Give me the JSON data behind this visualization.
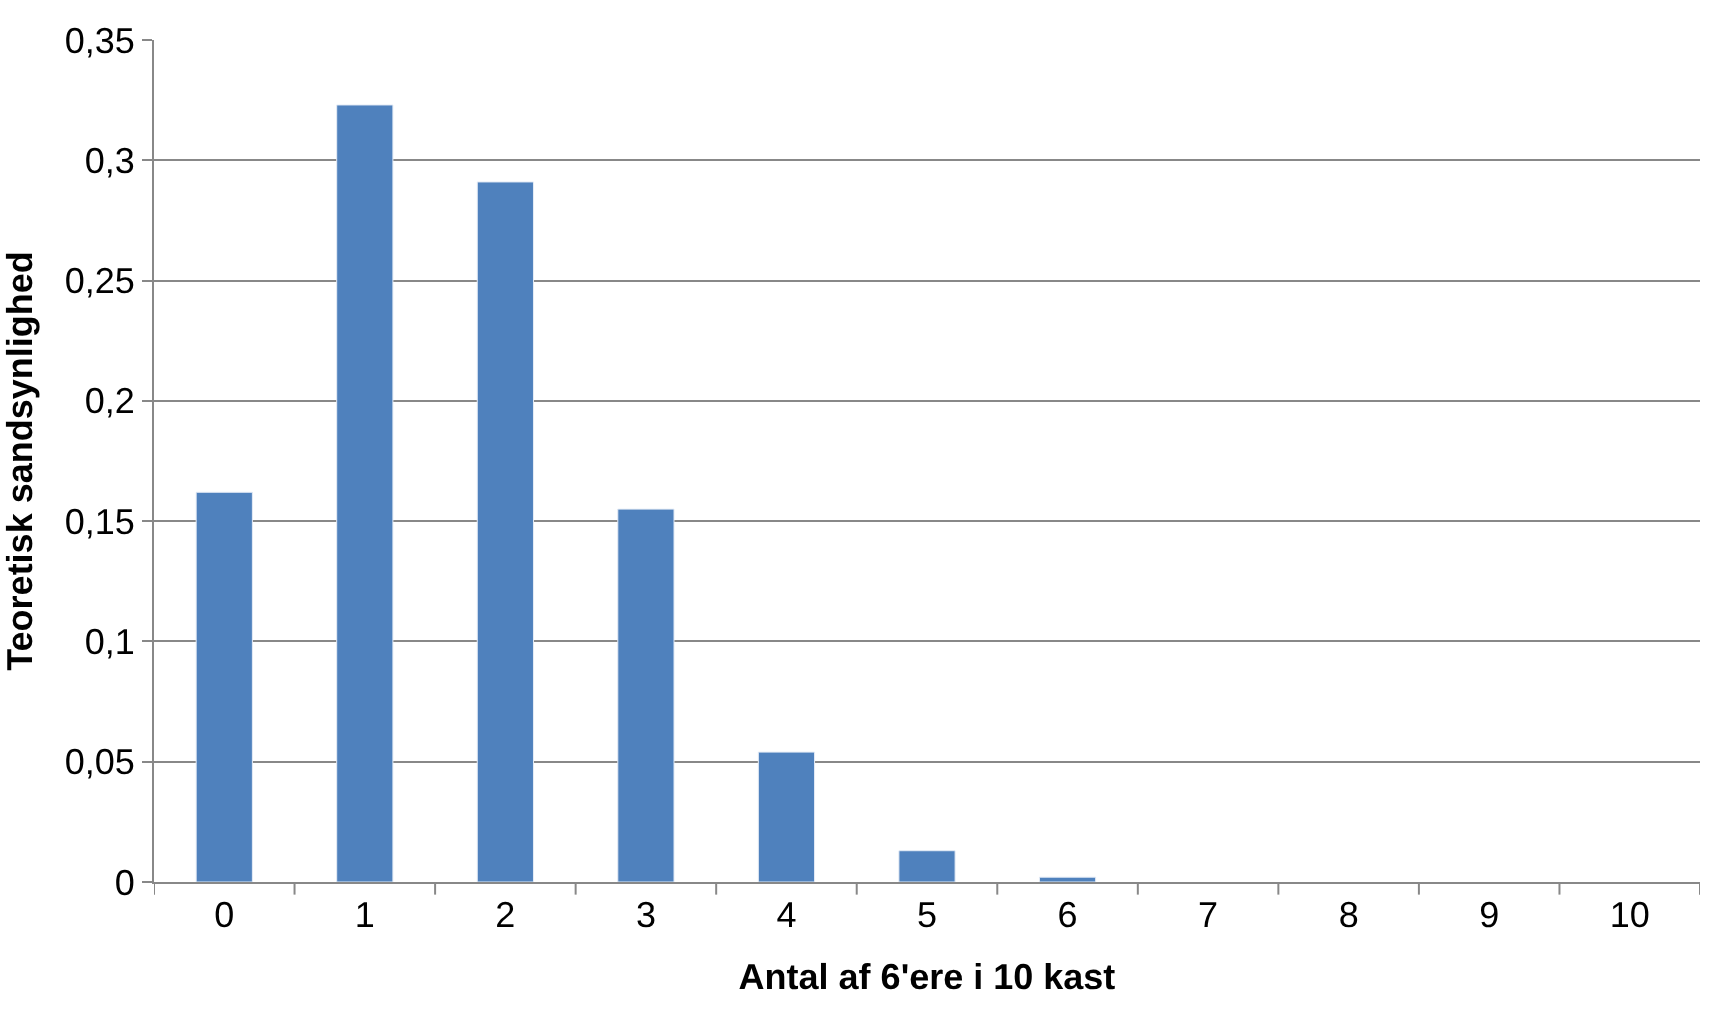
{
  "chart_data": {
    "type": "bar",
    "xlabel": "Antal af 6'ere i 10 kast",
    "ylabel": "Teoretisk sandsynlighed",
    "categories": [
      "0",
      "1",
      "2",
      "3",
      "4",
      "5",
      "6",
      "7",
      "8",
      "9",
      "10"
    ],
    "values": [
      0.162,
      0.323,
      0.291,
      0.155,
      0.054,
      0.013,
      0.002,
      null,
      null,
      null,
      null
    ],
    "color": "#4f81bd",
    "ylim": [
      0,
      0.35
    ],
    "yticks": [
      {
        "value": 0,
        "label": "0"
      },
      {
        "value": 0.05,
        "label": "0,05"
      },
      {
        "value": 0.1,
        "label": "0,1"
      },
      {
        "value": 0.15,
        "label": "0,15"
      },
      {
        "value": 0.2,
        "label": "0,2"
      },
      {
        "value": 0.25,
        "label": "0,25"
      },
      {
        "value": 0.3,
        "label": "0,3"
      },
      {
        "value": 0.35,
        "label": "0,35"
      }
    ],
    "grid": "y"
  }
}
